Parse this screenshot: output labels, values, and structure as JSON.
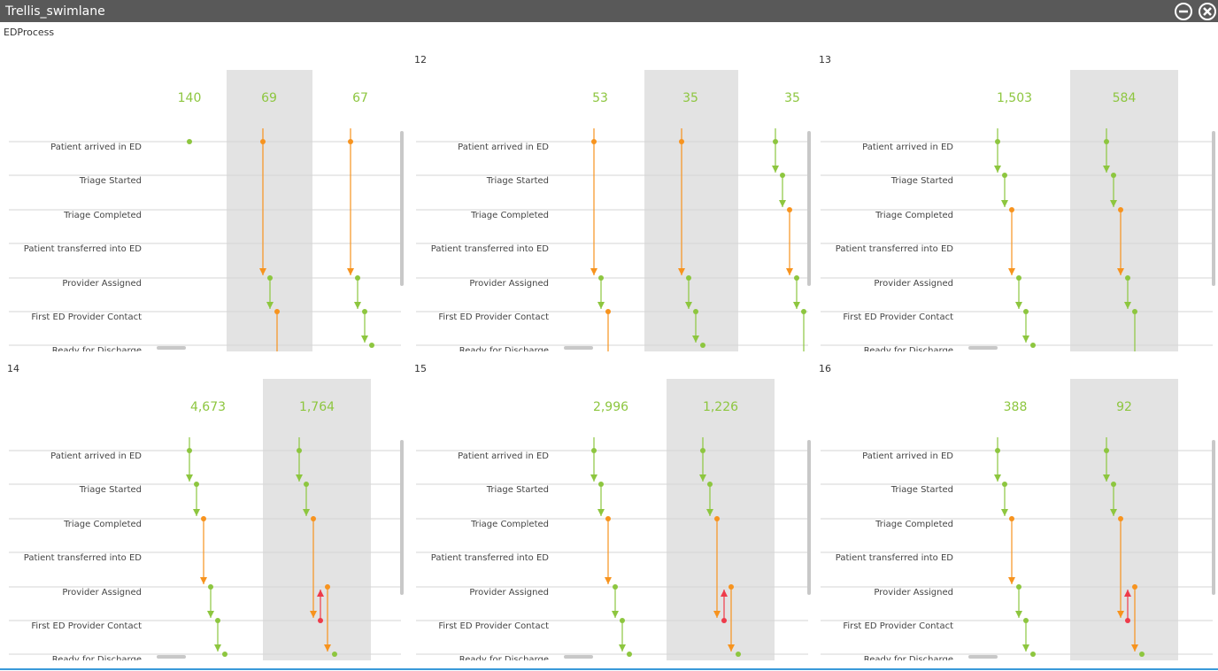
{
  "window": {
    "title": "Trellis_swimlane"
  },
  "subtitle": "EDProcess",
  "stages": [
    "Patient arrived in ED",
    "Triage Started",
    "Triage Completed",
    "Patient transferred into ED",
    "Provider Assigned",
    "First ED Provider Contact",
    "Ready for Discharge"
  ],
  "panels": [
    {
      "counts": [
        "140",
        "69",
        "67"
      ]
    },
    {
      "title": "12",
      "counts": [
        "53",
        "35",
        "35"
      ]
    },
    {
      "title": "13",
      "counts": [
        "1,503",
        "584"
      ]
    },
    {
      "title": "14",
      "counts": [
        "4,673",
        "1,764"
      ]
    },
    {
      "title": "15",
      "counts": [
        "2,996",
        "1,226"
      ]
    },
    {
      "title": "16",
      "counts": [
        "388",
        "92"
      ]
    }
  ]
}
